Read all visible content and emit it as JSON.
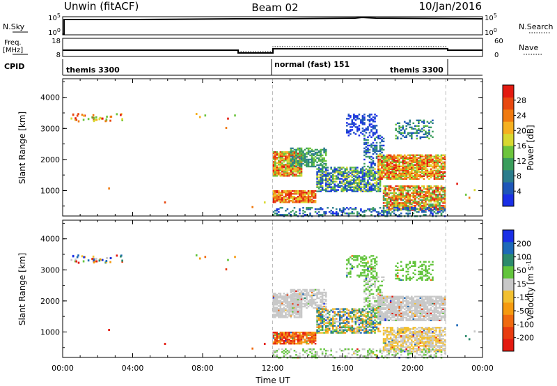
{
  "header": {
    "station": "Unwin (fitACF)",
    "beam": "Beam 02",
    "date": "10/Jan/2016"
  },
  "strips": {
    "nsky": {
      "label": "N.Sky",
      "y_ticks": [
        "10^5",
        "10^0"
      ],
      "right_label": "N.Search",
      "right_ticks": [
        "10^5",
        "10^0"
      ]
    },
    "freq": {
      "label_line1": "Freq.",
      "label_line2": "[MHz]",
      "y_ticks": [
        "18",
        "8"
      ],
      "right_label": "Nave",
      "right_ticks": [
        "60",
        "0"
      ]
    },
    "cpid": {
      "label": "CPID",
      "modes": [
        {
          "start_h": 0,
          "text": "themis 3300"
        },
        {
          "start_h": 12,
          "text": "normal (fast) 151"
        },
        {
          "start_h": 19.4,
          "text": "themis 3300"
        }
      ]
    }
  },
  "chart_data": [
    {
      "type": "heatmap",
      "name": "power",
      "ylabel": "Slant Range [km]",
      "ylim": [
        180,
        4600
      ],
      "y_ticks": [
        1000,
        2000,
        3000,
        4000
      ],
      "colorbar": {
        "label": "Power [dB]",
        "ticks": [
          "4",
          "8",
          "12",
          "16",
          "20",
          "24",
          "28"
        ],
        "colors": [
          "#1a2fe6",
          "#1e56b8",
          "#2c7d8c",
          "#3a9d5c",
          "#6cc43c",
          "#d8d830",
          "#f5b020",
          "#f07a10",
          "#e84810",
          "#e31a10"
        ]
      }
    },
    {
      "type": "heatmap",
      "name": "velocity",
      "ylabel": "Slant Range [km]",
      "ylim": [
        180,
        4600
      ],
      "y_ticks": [
        1000,
        2000,
        3000,
        4000
      ],
      "xlabel": "Time UT",
      "x_ticks": [
        "00:00",
        "04:00",
        "08:00",
        "12:00",
        "16:00",
        "20:00",
        "00:00"
      ],
      "xlim_hours": [
        0,
        24
      ],
      "colorbar": {
        "label": "Velocity [m s^-1]",
        "ticks": [
          "200",
          "100",
          "50",
          "15",
          "-15",
          "-50",
          "-100",
          "-200"
        ],
        "colors": [
          "#1a2fe6",
          "#1e6ab8",
          "#2c8a6c",
          "#62c43c",
          "#c8c8c8",
          "#f2c030",
          "#f59a10",
          "#f06a10",
          "#e83c10",
          "#e31a10"
        ]
      }
    }
  ]
}
